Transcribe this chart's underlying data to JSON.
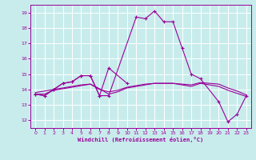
{
  "xlabel": "Windchill (Refroidissement éolien,°C)",
  "background_color": "#c8ecec",
  "grid_color": "#ffffff",
  "line_color": "#990099",
  "xlim": [
    -0.5,
    23.5
  ],
  "ylim": [
    11.5,
    19.5
  ],
  "yticks": [
    12,
    13,
    14,
    15,
    16,
    17,
    18,
    19
  ],
  "xticks": [
    0,
    1,
    2,
    3,
    4,
    5,
    6,
    7,
    8,
    9,
    10,
    11,
    12,
    13,
    14,
    15,
    16,
    17,
    18,
    19,
    20,
    21,
    22,
    23
  ],
  "series1_x": [
    0,
    1,
    2,
    3,
    4,
    5,
    6,
    7,
    8,
    11,
    12,
    13,
    14,
    15,
    16,
    17,
    18,
    20,
    21,
    22,
    23
  ],
  "series1_y": [
    13.7,
    13.6,
    14.0,
    14.4,
    14.5,
    14.9,
    14.9,
    13.6,
    13.6,
    18.7,
    18.6,
    19.1,
    18.4,
    18.4,
    16.7,
    15.0,
    14.7,
    13.2,
    11.9,
    12.4,
    13.6
  ],
  "series2_x": [
    0,
    1,
    2,
    3,
    4,
    5,
    6,
    7,
    8,
    10
  ],
  "series2_y": [
    13.7,
    13.6,
    14.0,
    14.4,
    14.5,
    14.9,
    14.9,
    13.6,
    15.4,
    14.4
  ],
  "series3_x": [
    0,
    1,
    2,
    3,
    4,
    5,
    6,
    7,
    8,
    9,
    10,
    11,
    12,
    13,
    14,
    15,
    16,
    17,
    18,
    19,
    20,
    21,
    22,
    23
  ],
  "series3_y": [
    13.8,
    13.9,
    14.0,
    14.1,
    14.2,
    14.3,
    14.35,
    14.05,
    13.7,
    13.85,
    14.1,
    14.2,
    14.3,
    14.4,
    14.4,
    14.4,
    14.35,
    14.3,
    14.45,
    14.4,
    14.35,
    14.1,
    13.9,
    13.65
  ],
  "series4_x": [
    0,
    1,
    2,
    3,
    4,
    5,
    6,
    7,
    8,
    9,
    10,
    11,
    12,
    13,
    14,
    15,
    16,
    17,
    18,
    19,
    20,
    21,
    22,
    23
  ],
  "series4_y": [
    13.7,
    13.7,
    13.95,
    14.05,
    14.15,
    14.25,
    14.35,
    14.0,
    13.85,
    13.95,
    14.15,
    14.25,
    14.35,
    14.4,
    14.4,
    14.4,
    14.3,
    14.2,
    14.4,
    14.3,
    14.2,
    13.95,
    13.75,
    13.55
  ]
}
